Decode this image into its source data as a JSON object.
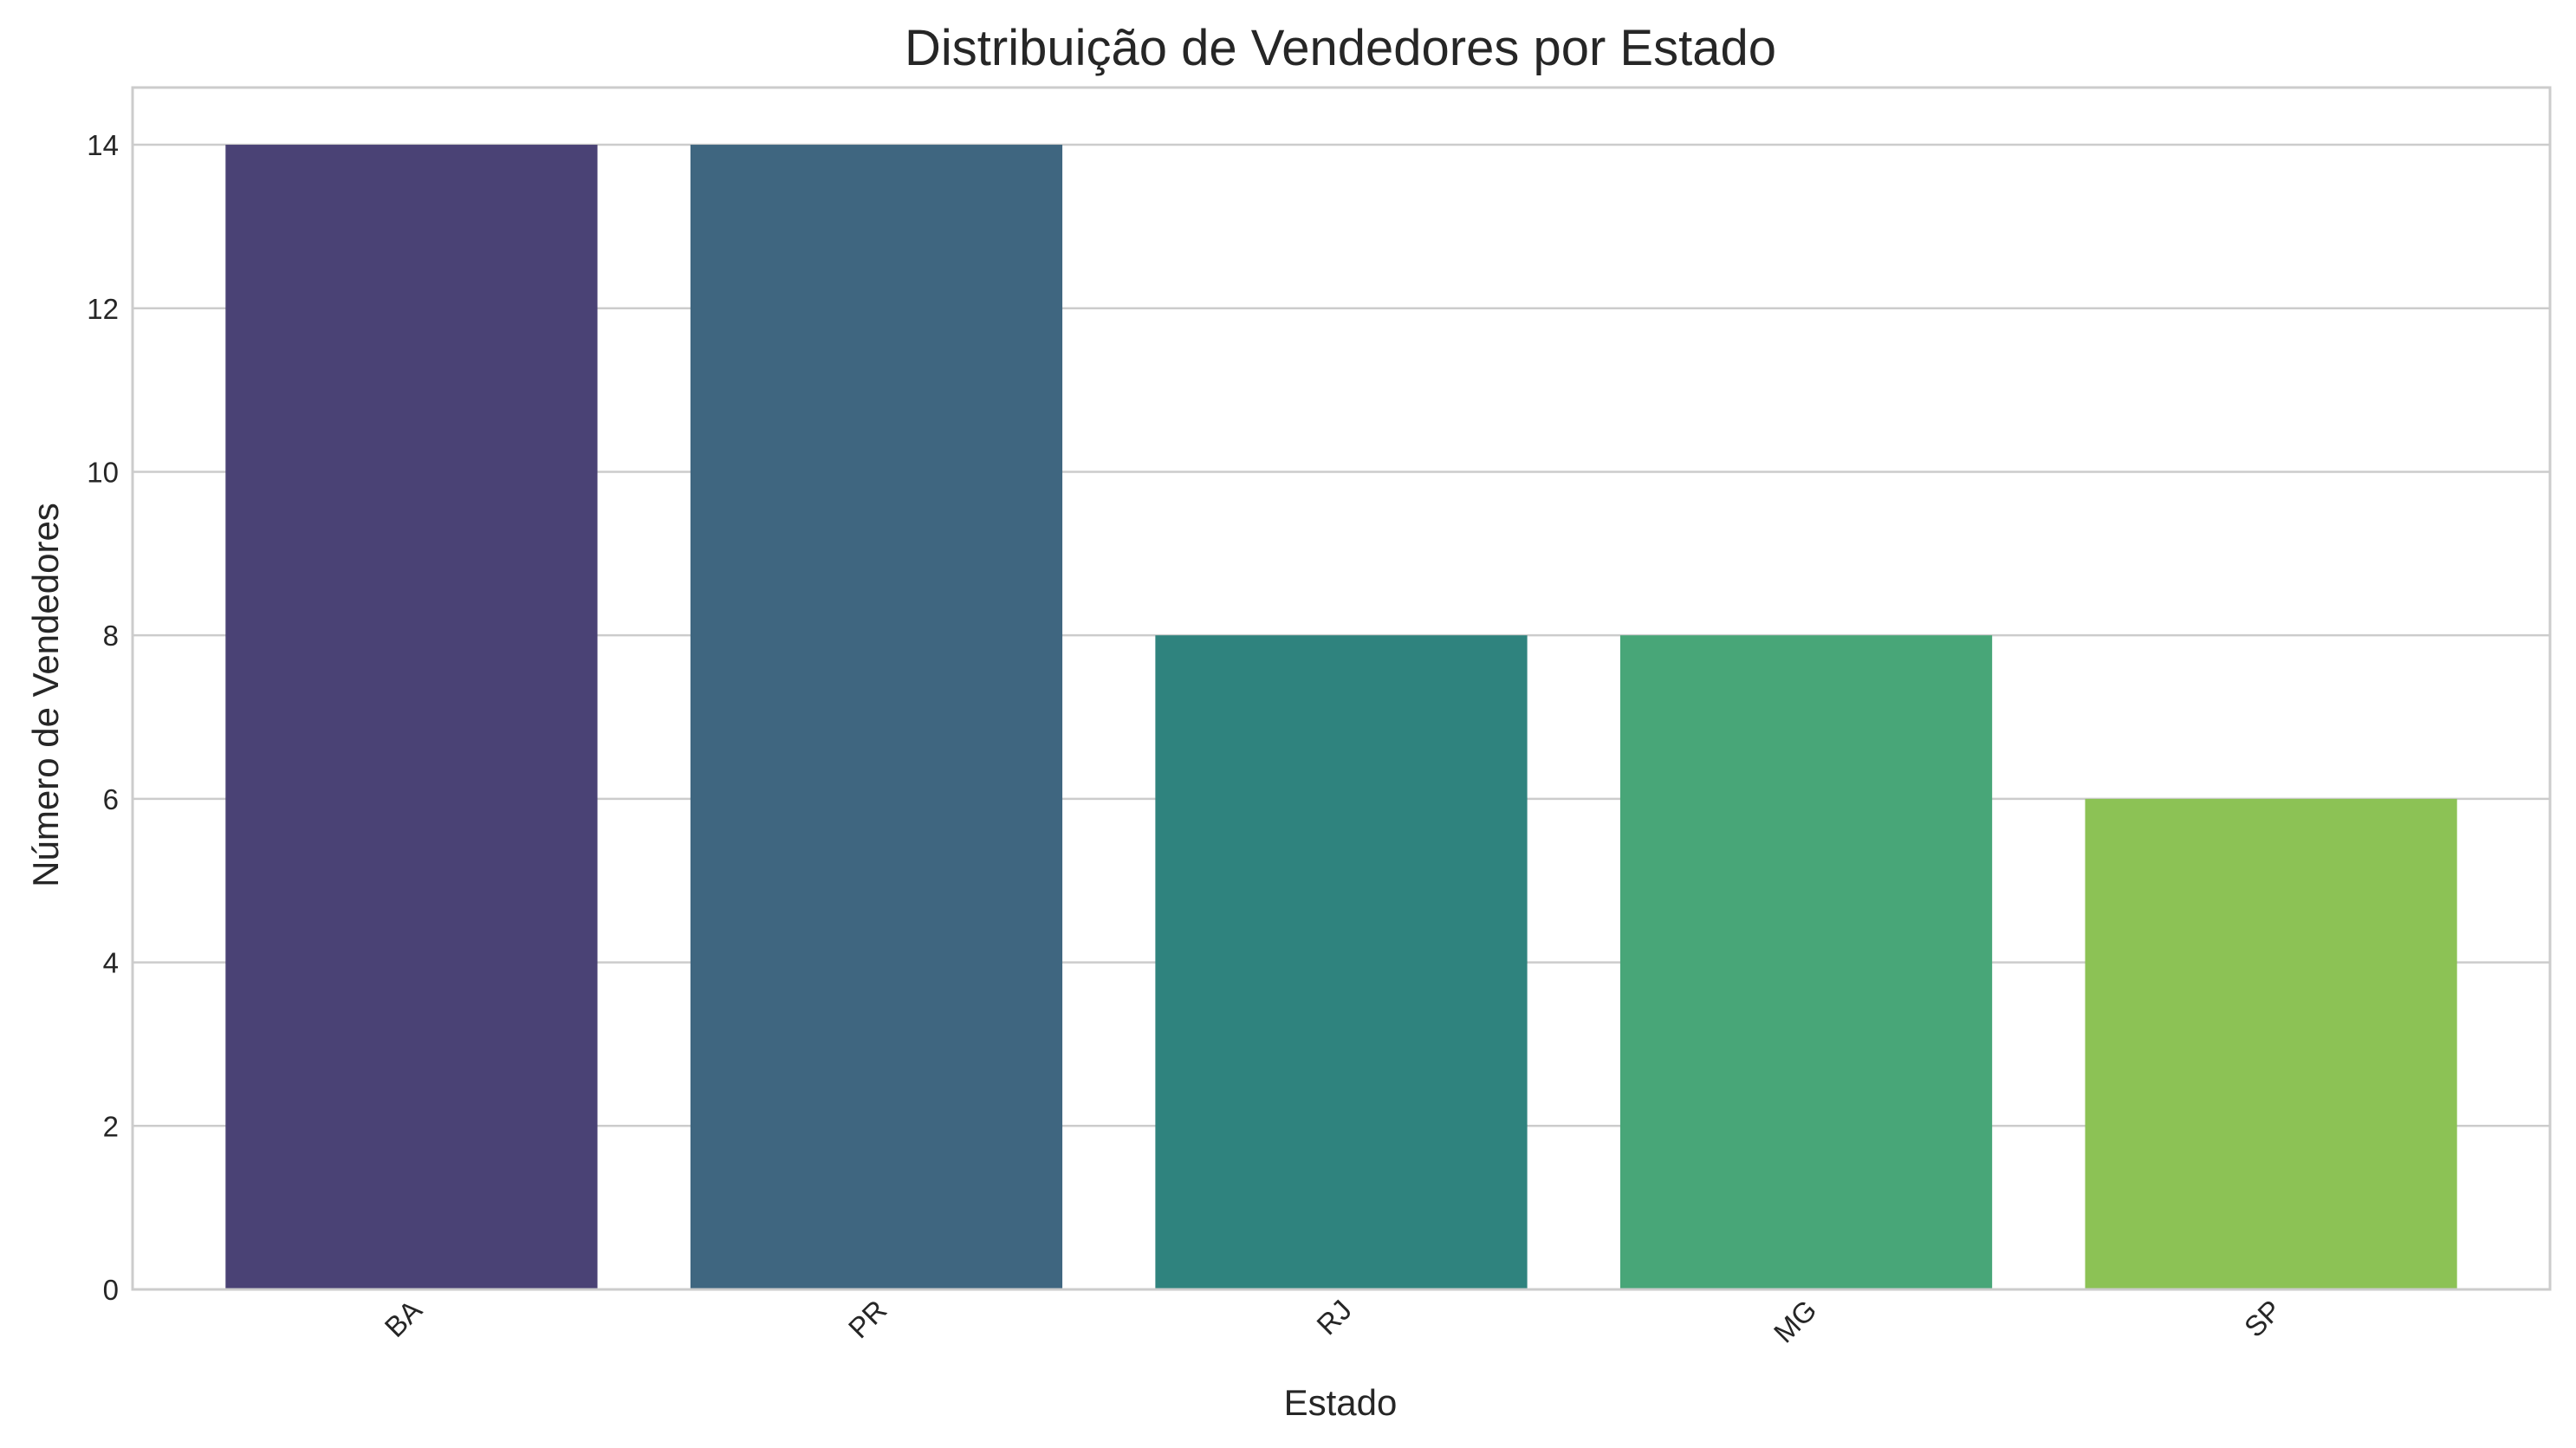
{
  "chart_data": {
    "type": "bar",
    "title": "Distribuição de Vendedores por Estado",
    "xlabel": "Estado",
    "ylabel": "Número de Vendedores",
    "categories": [
      "BA",
      "PR",
      "RJ",
      "MG",
      "SP"
    ],
    "values": [
      14,
      14,
      8,
      8,
      6
    ],
    "colors": [
      "#4a4275",
      "#3f6680",
      "#2f837e",
      "#48a678",
      "#8cc255"
    ],
    "ylim": [
      0,
      14.7
    ],
    "yticks": [
      0,
      2,
      4,
      6,
      8,
      10,
      12,
      14
    ],
    "grid": true,
    "grid_axis": "y",
    "legend": "none",
    "xtick_rotation": 45
  }
}
